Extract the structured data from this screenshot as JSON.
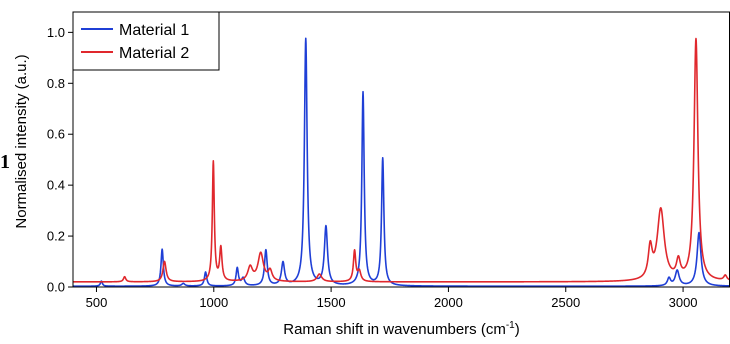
{
  "chart_data": {
    "type": "line",
    "xlabel": "Raman shift in wavenumbers (cm",
    "xlabel_sup": "-1",
    "xlabel_end": ")",
    "ylabel": "Normalised intensity (a.u.)",
    "xlim": [
      400,
      3200
    ],
    "ylim": [
      0,
      1.08
    ],
    "xticks": [
      500,
      1000,
      1500,
      2000,
      2500,
      3000
    ],
    "yticks": [
      0.0,
      0.2,
      0.4,
      0.6,
      0.8,
      1.0
    ],
    "ytick_labels": [
      "0.0",
      "0.2",
      "0.4",
      "0.6",
      "0.8",
      "1.0"
    ],
    "legend_position": "top-left",
    "series": [
      {
        "name": "Material 1",
        "color": "#1f3fd6",
        "baseline": 0.003,
        "peaks": [
          [
            521,
            0.02,
            5
          ],
          [
            780,
            0.145,
            6
          ],
          [
            870,
            0.01,
            8
          ],
          [
            965,
            0.055,
            6
          ],
          [
            1100,
            0.07,
            6
          ],
          [
            1125,
            0.03,
            8
          ],
          [
            1222,
            0.14,
            7
          ],
          [
            1295,
            0.09,
            8
          ],
          [
            1392,
            0.97,
            7
          ],
          [
            1478,
            0.23,
            8
          ],
          [
            1636,
            0.76,
            6
          ],
          [
            1720,
            0.5,
            6
          ],
          [
            2940,
            0.03,
            8
          ],
          [
            2975,
            0.06,
            10
          ],
          [
            3068,
            0.21,
            10
          ]
        ]
      },
      {
        "name": "Material 2",
        "color": "#e0282d",
        "baseline": 0.02,
        "peaks": [
          [
            620,
            0.02,
            6
          ],
          [
            790,
            0.08,
            8
          ],
          [
            998,
            0.47,
            5
          ],
          [
            1030,
            0.13,
            6
          ],
          [
            1155,
            0.055,
            12
          ],
          [
            1200,
            0.11,
            14
          ],
          [
            1240,
            0.04,
            10
          ],
          [
            1450,
            0.03,
            12
          ],
          [
            1600,
            0.12,
            6
          ],
          [
            1620,
            0.04,
            8
          ],
          [
            2860,
            0.12,
            10
          ],
          [
            2905,
            0.28,
            18
          ],
          [
            2980,
            0.07,
            10
          ],
          [
            3055,
            0.95,
            10
          ],
          [
            3180,
            0.02,
            8
          ]
        ]
      }
    ]
  },
  "page": {
    "stray_glyph": "1"
  }
}
